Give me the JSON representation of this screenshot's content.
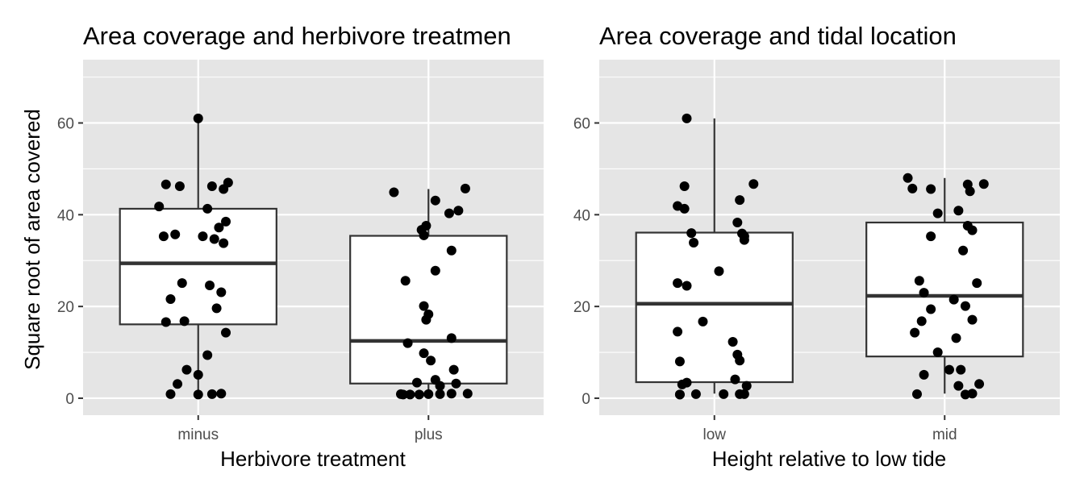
{
  "shared_ylabel": "Square root of area covered",
  "colors": {
    "panel_background": "#e5e5e5",
    "grid": "#ffffff",
    "box_fill": "#ffffff",
    "box_line": "#333333",
    "points": "#000000",
    "tick_text": "#4d4d4d"
  },
  "chart_data": [
    {
      "type": "box",
      "title": "Area coverage and herbivore treatmen",
      "xlabel": "Herbivore treatment",
      "ylabel": "Square root of area covered",
      "ylim": [
        -3.7,
        73.8
      ],
      "yticks": [
        0,
        20,
        40,
        60
      ],
      "grid": true,
      "categories": [
        "minus",
        "plus"
      ],
      "boxes": [
        {
          "category": "minus",
          "min": 1,
          "q1": 16.1,
          "median": 29.4,
          "q3": 41.3,
          "max": 61
        },
        {
          "category": "plus",
          "min": 1,
          "q1": 3.2,
          "median": 12.5,
          "q3": 35.4,
          "max": 45.6
        }
      ],
      "points": [
        {
          "category": "minus",
          "jitter": [
            0.0,
            0.13,
            -0.14,
            0.06,
            -0.08,
            0.11,
            -0.17,
            0.04,
            0.12,
            0.09,
            -0.1,
            0.02,
            -0.15,
            0.07,
            0.11,
            -0.07,
            0.05,
            0.1,
            -0.12,
            0.08,
            -0.06,
            -0.14,
            0.12,
            0.04,
            -0.05,
            0.0,
            -0.09,
            0.1,
            0.06,
            0.0,
            -0.12
          ],
          "values": [
            61,
            47,
            46.6,
            46.2,
            46.2,
            45.6,
            41.8,
            41.3,
            38.5,
            37.2,
            35.7,
            35.3,
            35.3,
            34.7,
            33.8,
            25.1,
            24.6,
            23.1,
            21.6,
            19.6,
            16.8,
            16.6,
            14.3,
            9.4,
            6.2,
            5.1,
            3.1,
            1.0,
            0.9,
            0.8,
            0.9
          ]
        },
        {
          "category": "plus",
          "jitter": [
            0.16,
            -0.15,
            0.03,
            0.13,
            0.09,
            -0.01,
            -0.03,
            -0.02,
            0.1,
            -0.1,
            0.03,
            -0.02,
            0.0,
            -0.01,
            0.1,
            -0.09,
            -0.02,
            0.01,
            0.11,
            0.03,
            -0.05,
            0.12,
            0.05,
            0.1,
            0.0,
            -0.11,
            -0.12,
            0.05,
            -0.08,
            -0.04,
            0.17
          ],
          "values": [
            45.7,
            44.9,
            43.1,
            40.9,
            40.3,
            37.6,
            36.7,
            35.5,
            32.2,
            25.6,
            27.8,
            20.1,
            18.3,
            17.1,
            13.1,
            12.0,
            9.8,
            8.2,
            6.2,
            4.0,
            3.4,
            3.2,
            2.7,
            1.0,
            0.9,
            0.8,
            0.9,
            0.9,
            0.8,
            0.8,
            1.0
          ]
        }
      ]
    },
    {
      "type": "box",
      "title": "Area coverage and tidal location",
      "xlabel": "Height relative to low tide",
      "ylabel": "",
      "ylim": [
        -3.7,
        73.8
      ],
      "yticks": [
        0,
        20,
        40,
        60
      ],
      "grid": true,
      "categories": [
        "low",
        "mid"
      ],
      "boxes": [
        {
          "category": "low",
          "min": 1,
          "q1": 3.5,
          "median": 20.6,
          "q3": 36.1,
          "max": 61
        },
        {
          "category": "mid",
          "min": 1,
          "q1": 9.1,
          "median": 22.3,
          "q3": 38.3,
          "max": 48
        }
      ],
      "points": [
        {
          "category": "low",
          "jitter": [
            -0.12,
            0.17,
            -0.13,
            0.11,
            -0.16,
            -0.13,
            0.1,
            -0.1,
            0.12,
            0.13,
            0.13,
            -0.09,
            0.02,
            -0.16,
            -0.12,
            -0.05,
            -0.16,
            0.08,
            0.1,
            0.11,
            -0.15,
            0.09,
            -0.12,
            -0.14,
            0.14,
            -0.15,
            0.13,
            -0.15,
            -0.08,
            0.11,
            0.04
          ],
          "values": [
            61,
            46.7,
            46.2,
            43.2,
            41.9,
            41.3,
            38.3,
            36.0,
            35.9,
            35.3,
            34.5,
            33.9,
            27.7,
            25.1,
            24.5,
            16.7,
            14.5,
            12.3,
            9.5,
            8.2,
            8.0,
            4.1,
            3.4,
            3.0,
            2.7,
            0.8,
            0.9,
            0.8,
            0.9,
            0.9,
            0.9
          ]
        },
        {
          "category": "mid",
          "jitter": [
            -0.16,
            0.17,
            0.1,
            -0.14,
            -0.06,
            0.11,
            0.06,
            -0.03,
            0.1,
            -0.06,
            0.12,
            0.08,
            -0.11,
            0.14,
            -0.09,
            0.04,
            0.09,
            -0.06,
            0.12,
            -0.1,
            -0.13,
            0.05,
            -0.03,
            0.07,
            0.02,
            -0.09,
            0.15,
            0.06,
            0.12,
            -0.12,
            0.09
          ],
          "values": [
            48,
            46.7,
            46.6,
            45.7,
            45.6,
            45.1,
            40.9,
            40.3,
            37.6,
            35.3,
            36.6,
            32.2,
            25.6,
            25.1,
            23.0,
            21.5,
            20.1,
            19.4,
            17.1,
            16.8,
            14.3,
            13.1,
            10.0,
            6.2,
            6.2,
            5.1,
            3.1,
            2.7,
            1.0,
            0.9,
            0.8
          ]
        }
      ]
    }
  ]
}
